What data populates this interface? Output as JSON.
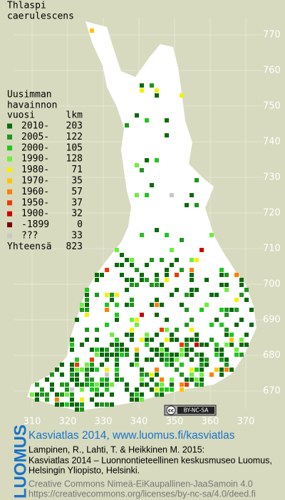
{
  "title": [
    "Thlaspi",
    "caerulescens"
  ],
  "legend": {
    "heading": [
      "Uusimman",
      "havainnon"
    ],
    "year_header": "vuosi",
    "count_header": "lkm",
    "rows": [
      {
        "label": "2010-",
        "count": 203,
        "color": "#0b6a0b"
      },
      {
        "label": "2005-",
        "count": 122,
        "color": "#1f961f"
      },
      {
        "label": "2000-",
        "count": 105,
        "color": "#1ec81e"
      },
      {
        "label": "1990-",
        "count": 128,
        "color": "#6cf03a"
      },
      {
        "label": "1980-",
        "count": 71,
        "color": "#f2f200"
      },
      {
        "label": "1970-",
        "count": 35,
        "color": "#ffc400"
      },
      {
        "label": "1960-",
        "count": 57,
        "color": "#ff7f00"
      },
      {
        "label": "1950-",
        "count": 37,
        "color": "#ee3a00"
      },
      {
        "label": "1900-",
        "count": 32,
        "color": "#cc0000"
      },
      {
        "label": "-1899",
        "count": 0,
        "color": "#7a0000"
      },
      {
        "label": "???",
        "count": 33,
        "color": "#c8c8c8"
      }
    ],
    "total": {
      "label": "Yhteensä",
      "count": 823
    }
  },
  "map": {
    "xlim": [
      305,
      375
    ],
    "ylim": [
      665,
      775
    ],
    "xticks": [
      310,
      320,
      330,
      340,
      350,
      360,
      370
    ],
    "yticks": [
      670,
      680,
      690,
      700,
      710,
      720,
      730,
      740,
      750,
      760,
      770
    ]
  },
  "badge": {
    "icon": "cc",
    "text": "BY-NC-SA"
  },
  "footer": {
    "logo": "LUOMUS",
    "link": "Kasviatlas 2014, www.luomus.fi/kasviatlas",
    "citation": [
      "Lampinen, R., Lahti, T. & Heikkinen M. 2015:",
      "Kasviatlas 2014 – Luonnontieteellinen keskusmuseo Luomus,",
      "Helsingin Yliopisto, Helsinki."
    ],
    "license": [
      "Creative Commons Nimeä-EiKaupallinen-JaaSamoin 4.0",
      "https://creativecommons.org/licenses/by-nc-sa/4.0/deed.fi"
    ]
  }
}
